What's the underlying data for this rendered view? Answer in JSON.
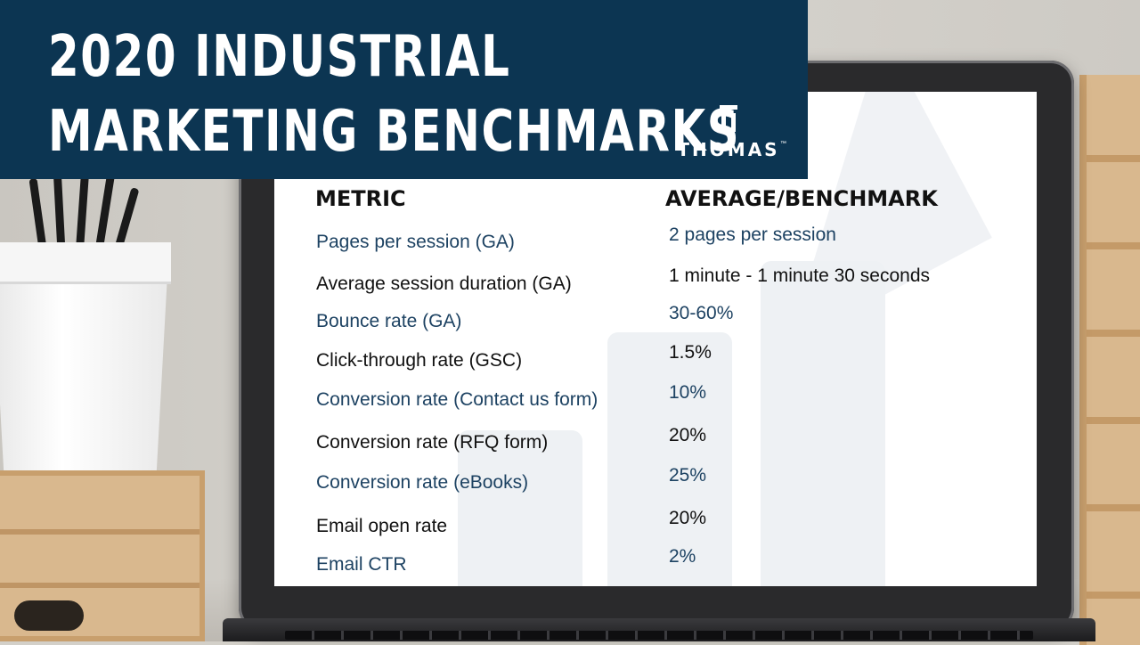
{
  "banner": {
    "title_line1": "2020 INDUSTRIAL",
    "title_line2": "MARKETING BENCHMARKS",
    "logo_text": "THOMAS",
    "logo_tm": "™"
  },
  "table": {
    "metric_header": "METRIC",
    "benchmark_header": "AVERAGE/BENCHMARK",
    "rows": [
      {
        "metric": "Pages per session (GA)",
        "benchmark": "2 pages per session"
      },
      {
        "metric": "Average session duration (GA)",
        "benchmark": "1 minute - 1 minute 30 seconds"
      },
      {
        "metric": "Bounce rate (GA)",
        "benchmark": "30-60%"
      },
      {
        "metric": "Click-through rate (GSC)",
        "benchmark": "1.5%"
      },
      {
        "metric": "Conversion rate (Contact us form)",
        "benchmark": "10%"
      },
      {
        "metric": "Conversion rate (RFQ form)",
        "benchmark": "20%"
      },
      {
        "metric": "Conversion rate (eBooks)",
        "benchmark": "25%"
      },
      {
        "metric": "Email open rate",
        "benchmark": "20%"
      },
      {
        "metric": "Email CTR",
        "benchmark": "2%"
      }
    ]
  },
  "colors": {
    "banner_bg": "#0c3552",
    "row_blue": "#1d4262",
    "row_black": "#111111"
  }
}
